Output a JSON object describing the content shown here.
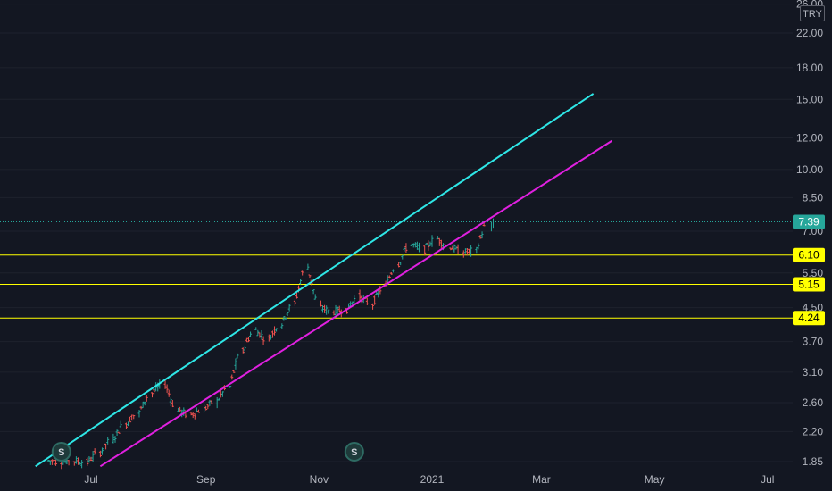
{
  "currency": "TRY",
  "colors": {
    "background": "#131722",
    "up": "#26a69a",
    "down": "#ef5350",
    "channel_upper": "#2ee6e6",
    "channel_lower": "#e020e0",
    "support": "#ffff00",
    "current_price": "#26a69a"
  },
  "markers": [
    "S",
    "S"
  ],
  "chart_data": {
    "type": "candlestick",
    "y_scale": "log",
    "y_ticks": [
      "26.00",
      "22.00",
      "18.00",
      "15.00",
      "12.00",
      "10.00",
      "8.50",
      "7.00",
      "5.50",
      "4.50",
      "3.70",
      "3.10",
      "2.60",
      "2.20",
      "1.85"
    ],
    "x_ticks": [
      "Jul",
      "Sep",
      "Nov",
      "2021",
      "Mar",
      "May",
      "Jul"
    ],
    "current_price": "7.39",
    "horizontal_levels": [
      "6.10",
      "5.15",
      "4.24"
    ],
    "series": [
      {
        "name": "close",
        "points": [
          [
            "2020-06-08",
            1.86
          ],
          [
            "2020-06-15",
            1.85
          ],
          [
            "2020-06-22",
            1.86
          ],
          [
            "2020-06-29",
            1.84
          ],
          [
            "2020-07-06",
            1.95
          ],
          [
            "2020-07-13",
            2.1
          ],
          [
            "2020-07-20",
            2.3
          ],
          [
            "2020-07-27",
            2.45
          ],
          [
            "2020-08-03",
            2.75
          ],
          [
            "2020-08-10",
            2.9
          ],
          [
            "2020-08-17",
            2.5
          ],
          [
            "2020-08-24",
            2.42
          ],
          [
            "2020-08-31",
            2.5
          ],
          [
            "2020-09-07",
            2.62
          ],
          [
            "2020-09-14",
            2.85
          ],
          [
            "2020-09-21",
            3.5
          ],
          [
            "2020-09-28",
            3.95
          ],
          [
            "2020-10-05",
            3.75
          ],
          [
            "2020-10-12",
            4.1
          ],
          [
            "2020-10-19",
            4.6
          ],
          [
            "2020-10-26",
            5.7
          ],
          [
            "2020-11-02",
            4.5
          ],
          [
            "2020-11-09",
            4.4
          ],
          [
            "2020-11-16",
            4.45
          ],
          [
            "2020-11-23",
            4.8
          ],
          [
            "2020-11-30",
            4.6
          ],
          [
            "2020-12-07",
            5.1
          ],
          [
            "2020-12-14",
            5.8
          ],
          [
            "2020-12-21",
            6.5
          ],
          [
            "2020-12-28",
            6.3
          ],
          [
            "2021-01-04",
            6.7
          ],
          [
            "2021-01-11",
            6.4
          ],
          [
            "2021-01-18",
            6.2
          ],
          [
            "2021-01-25",
            6.25
          ],
          [
            "2021-02-01",
            7.39
          ]
        ]
      }
    ],
    "channels": [
      {
        "name": "upper",
        "from": [
          "2020-06-01",
          1.8
        ],
        "to": [
          "2021-03-29",
          15.5
        ]
      },
      {
        "name": "lower",
        "from": [
          "2020-07-06",
          1.8
        ],
        "to": [
          "2021-04-08",
          11.8
        ]
      }
    ]
  }
}
